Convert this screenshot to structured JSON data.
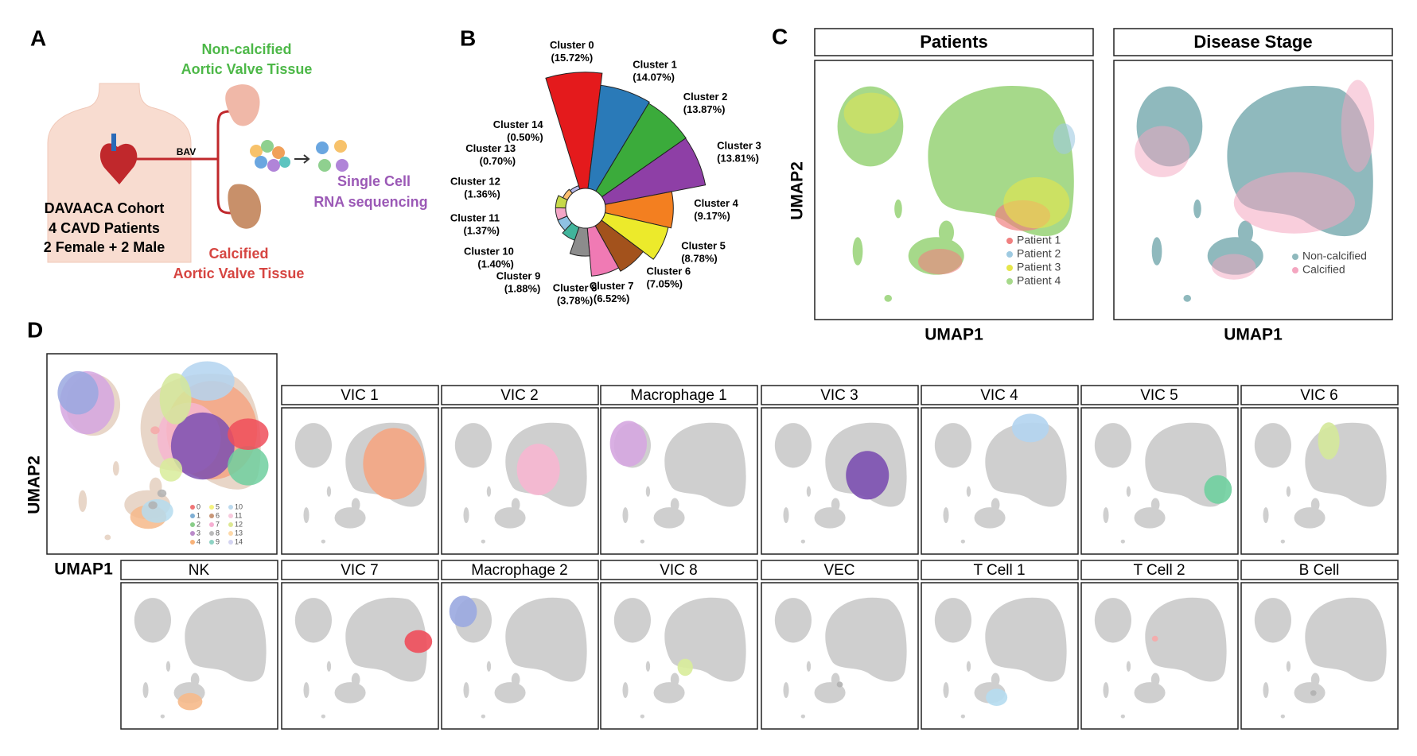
{
  "panel_a": {
    "letter": "A",
    "top_tissue": [
      "Non-calcified",
      "Aortic Valve Tissue"
    ],
    "connector": "BAV",
    "cohort": [
      "DAVAACA Cohort",
      "4 CAVD Patients",
      "2 Female + 2 Male"
    ],
    "bottom_tissue": [
      "Calcified",
      "Aortic Valve Tissue"
    ],
    "method": [
      "Single Cell",
      "RNA sequencing"
    ]
  },
  "panel_b": {
    "letter": "B"
  },
  "chart_data": {
    "type": "rose",
    "categories": [
      "Cluster 0",
      "Cluster 1",
      "Cluster 2",
      "Cluster 3",
      "Cluster 4",
      "Cluster 5",
      "Cluster 6",
      "Cluster 7",
      "Cluster 8",
      "Cluster 9",
      "Cluster 10",
      "Cluster 11",
      "Cluster 12",
      "Cluster 13",
      "Cluster 14"
    ],
    "values": [
      15.72,
      14.07,
      13.87,
      13.81,
      9.17,
      8.78,
      7.05,
      6.52,
      3.78,
      1.88,
      1.4,
      1.37,
      1.36,
      0.7,
      0.5
    ],
    "value_labels": [
      "(15.72%)",
      "(14.07%)",
      "(13.87%)",
      "(13.81%)",
      "(9.17%)",
      "(8.78%)",
      "(7.05%)",
      "(6.52%)",
      "(3.78%)",
      "(1.88%)",
      "(1.40%)",
      "(1.37%)",
      "(1.36%)",
      "(0.70%)",
      "(0.50%)"
    ],
    "colors": [
      "#e41a1c",
      "#2a7ab8",
      "#3bab3b",
      "#8e3fa6",
      "#f37f20",
      "#ecea2b",
      "#a3521c",
      "#f07ab4",
      "#8c8c8c",
      "#41b49b",
      "#8fc1e3",
      "#f4a6c7",
      "#c6d94a",
      "#fdbf6f",
      "#b8b8e8"
    ]
  },
  "panel_c": {
    "letter": "C",
    "y_label": "UMAP2",
    "x_label": "UMAP1",
    "plots": [
      {
        "title": "Patients",
        "legend": [
          {
            "name": "Patient 1",
            "color": "#f08080"
          },
          {
            "name": "Patient 2",
            "color": "#9ecae1"
          },
          {
            "name": "Patient 3",
            "color": "#e6e64a"
          },
          {
            "name": "Patient 4",
            "color": "#a6d98a"
          }
        ]
      },
      {
        "title": "Disease Stage",
        "legend": [
          {
            "name": "Non-calcified",
            "color": "#8fb9bd"
          },
          {
            "name": "Calcified",
            "color": "#f4a6c0"
          }
        ]
      }
    ]
  },
  "panel_d": {
    "letter": "D",
    "y_label": "UMAP2",
    "x_label": "UMAP1",
    "legend": [
      "0",
      "1",
      "2",
      "3",
      "4",
      "5",
      "6",
      "7",
      "8",
      "9",
      "10",
      "11",
      "12",
      "13",
      "14"
    ],
    "panels": [
      {
        "title": "VIC 1",
        "color": "#f4a582"
      },
      {
        "title": "VIC 2",
        "color": "#f6b6d0"
      },
      {
        "title": "Macrophage 1",
        "color": "#d5a6e0"
      },
      {
        "title": "VIC 3",
        "color": "#7b4fb0"
      },
      {
        "title": "VIC 4",
        "color": "#b3d4f0"
      },
      {
        "title": "VIC 5",
        "color": "#6fcf9f"
      },
      {
        "title": "VIC 6",
        "color": "#d4e89a"
      },
      {
        "title": "NK",
        "color": "#f6b98a"
      },
      {
        "title": "VIC 7",
        "color": "#ee4d5a"
      },
      {
        "title": "Macrophage 2",
        "color": "#9aa8e0"
      },
      {
        "title": "VIC 8",
        "color": "#d8ec9a"
      },
      {
        "title": "VEC",
        "color": "#b0b0b0"
      },
      {
        "title": "T Cell 1",
        "color": "#b5dcef"
      },
      {
        "title": "T Cell 2",
        "color": "#f6a8a8"
      },
      {
        "title": "B Cell",
        "color": "#b0b0b0"
      }
    ]
  }
}
